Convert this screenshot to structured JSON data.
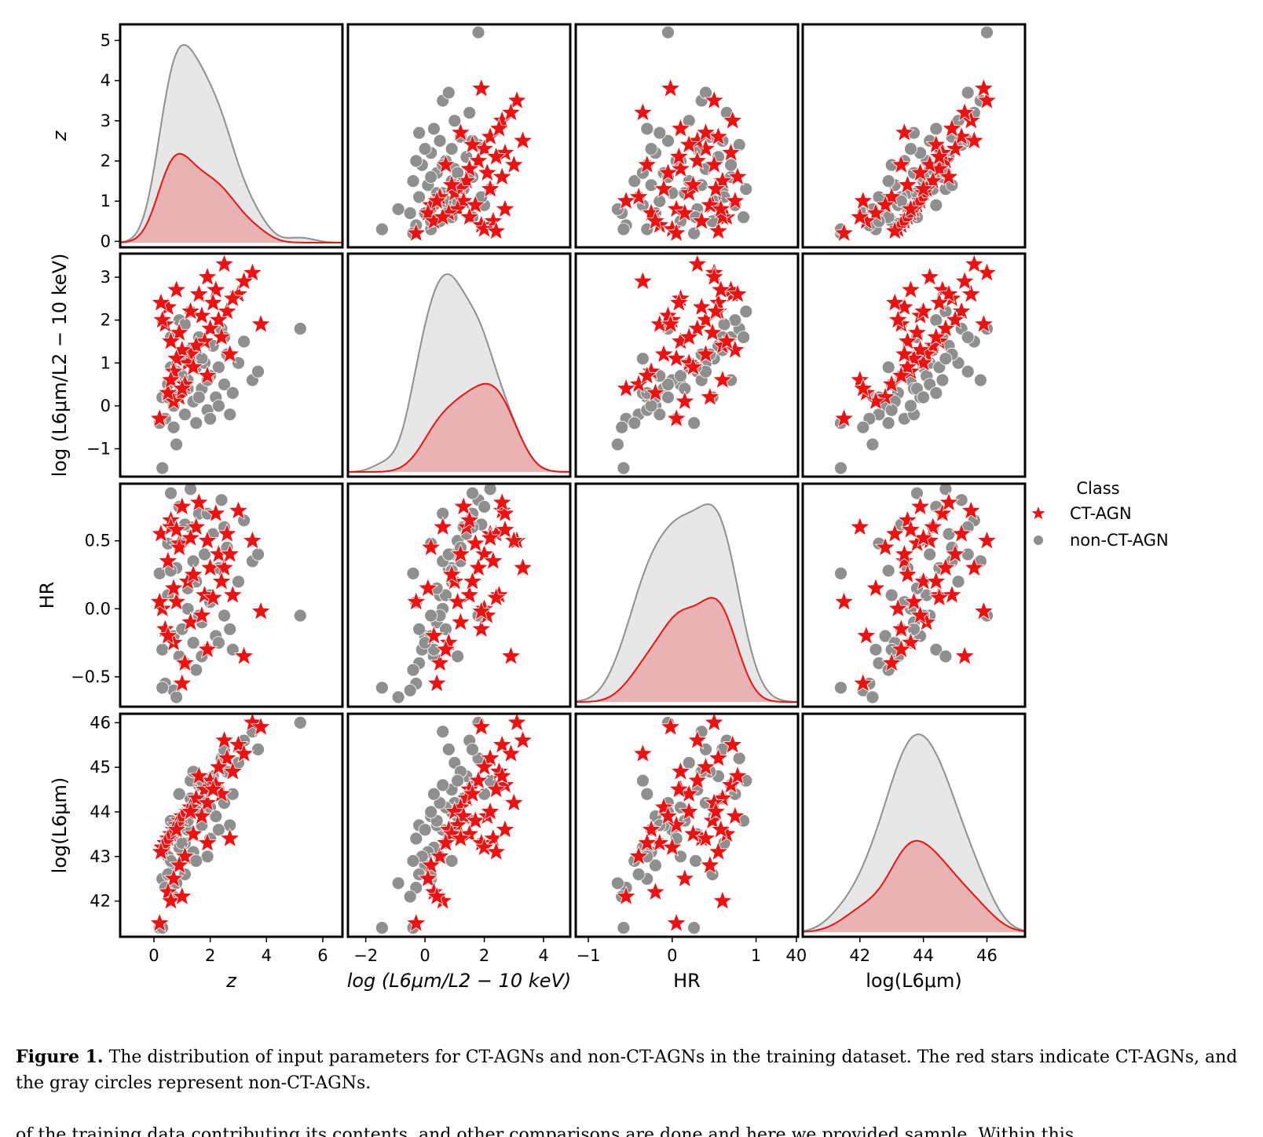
{
  "chart_data": {
    "type": "scatter",
    "variant": "pairplot",
    "variables": [
      "z",
      "log_ratio",
      "HR",
      "log_L6"
    ],
    "axis_labels": {
      "z": "z",
      "log_ratio": "log (L6μm/L2 − 10 keV)",
      "HR": "HR",
      "log_L6": "log(L6μm)"
    },
    "ranges": {
      "z": [
        -1.2,
        6.7
      ],
      "log_ratio": [
        -2.6,
        4.9
      ],
      "HR": [
        -1.15,
        1.5
      ],
      "log_L6": [
        40.2,
        47.2
      ]
    },
    "y_ranges": {
      "z": [
        -0.15,
        5.4
      ],
      "log_ratio": [
        -1.65,
        3.55
      ],
      "HR": [
        -0.72,
        0.92
      ],
      "log_L6": [
        41.2,
        46.2
      ]
    },
    "ticks": {
      "z": [
        0,
        2,
        4,
        6
      ],
      "log_ratio": [
        -2,
        0,
        2,
        4
      ],
      "HR": [
        -1,
        0,
        1
      ],
      "log_L6": [
        40,
        42,
        44,
        46
      ]
    },
    "y_ticks": {
      "z": [
        0,
        1,
        2,
        3,
        4,
        5
      ],
      "log_ratio": [
        -1,
        0,
        1,
        2,
        3
      ],
      "HR": [
        -0.5,
        0.0,
        0.5
      ],
      "log_L6": [
        42,
        43,
        44,
        45,
        46
      ]
    },
    "legend": {
      "title": "Class",
      "placement": "right",
      "entries": [
        "CT-AGN",
        "non-CT-AGN"
      ]
    },
    "colors": {
      "ct": "#ee1111",
      "ct_fill": "rgba(238,60,60,0.30)",
      "non_ct": "#8f8f8f",
      "non_ct_fill": "rgba(170,170,170,0.28)"
    },
    "series": [
      {
        "name": "CT-AGN",
        "marker": "star",
        "points": [
          [
            3.5,
            3.1,
            0.5,
            46.0
          ],
          [
            3.0,
            2.6,
            0.72,
            45.5
          ],
          [
            2.6,
            2.2,
            0.55,
            45.2
          ],
          [
            2.3,
            2.0,
            0.4,
            45.0
          ],
          [
            2.0,
            1.8,
            0.3,
            44.7
          ],
          [
            1.8,
            1.5,
            0.1,
            44.5
          ],
          [
            1.5,
            1.4,
            0.6,
            44.3
          ],
          [
            1.3,
            1.2,
            -0.1,
            44.1
          ],
          [
            1.2,
            1.0,
            0.2,
            44.0
          ],
          [
            1.0,
            1.3,
            0.75,
            43.9
          ],
          [
            0.9,
            1.7,
            0.48,
            43.8
          ],
          [
            0.8,
            1.1,
            0.05,
            43.7
          ],
          [
            0.7,
            0.8,
            -0.25,
            43.6
          ],
          [
            0.6,
            1.5,
            0.65,
            43.5
          ],
          [
            0.5,
            2.3,
            0.35,
            43.4
          ],
          [
            0.4,
            1.9,
            -0.15,
            43.3
          ],
          [
            0.3,
            2.0,
            0.0,
            43.2
          ],
          [
            0.25,
            2.4,
            0.55,
            43.1
          ],
          [
            2.8,
            2.5,
            0.1,
            44.9
          ],
          [
            3.2,
            2.9,
            -0.35,
            45.3
          ],
          [
            2.5,
            3.3,
            0.3,
            45.6
          ],
          [
            2.2,
            2.7,
            0.7,
            44.6
          ],
          [
            1.9,
            3.0,
            0.5,
            44.2
          ],
          [
            1.7,
            2.1,
            -0.05,
            43.9
          ],
          [
            1.4,
            0.9,
            0.25,
            43.5
          ],
          [
            1.1,
            0.5,
            -0.4,
            43.0
          ],
          [
            0.9,
            0.2,
            0.45,
            42.8
          ],
          [
            0.7,
            0.1,
            0.15,
            42.5
          ],
          [
            0.5,
            0.3,
            -0.2,
            42.2
          ],
          [
            0.6,
            0.6,
            0.6,
            42.0
          ],
          [
            0.2,
            -0.3,
            0.05,
            41.5
          ],
          [
            1.0,
            0.4,
            -0.55,
            42.1
          ],
          [
            1.6,
            2.6,
            0.78,
            44.8
          ],
          [
            2.4,
            1.6,
            0.2,
            44.4
          ],
          [
            3.8,
            1.9,
            -0.02,
            45.9
          ],
          [
            2.7,
            1.2,
            0.4,
            43.4
          ],
          [
            1.3,
            2.2,
            0.52,
            44.0
          ],
          [
            0.8,
            2.7,
            0.58,
            43.6
          ],
          [
            1.9,
            0.7,
            -0.3,
            43.3
          ],
          [
            2.1,
            2.4,
            0.08,
            44.5
          ]
        ]
      },
      {
        "name": "non-CT-AGN",
        "marker": "circle",
        "points": [
          [
            0.3,
            0.2,
            -0.3,
            42.5
          ],
          [
            0.5,
            0.5,
            0.1,
            43.0
          ],
          [
            0.7,
            0.0,
            -0.2,
            42.8
          ],
          [
            0.8,
            0.8,
            0.3,
            43.5
          ],
          [
            0.9,
            0.3,
            -0.35,
            43.2
          ],
          [
            1.0,
            1.1,
            0.5,
            43.9
          ],
          [
            1.1,
            -0.2,
            -0.4,
            42.6
          ],
          [
            1.2,
            0.6,
            0.0,
            43.6
          ],
          [
            1.3,
            1.3,
            0.6,
            44.3
          ],
          [
            1.4,
            0.1,
            -0.25,
            43.1
          ],
          [
            1.5,
            0.9,
            0.2,
            44.0
          ],
          [
            1.6,
            1.6,
            0.7,
            44.6
          ],
          [
            1.7,
            0.4,
            -0.1,
            43.7
          ],
          [
            1.8,
            1.0,
            0.4,
            44.2
          ],
          [
            1.9,
            -0.1,
            -0.3,
            43.0
          ],
          [
            2.0,
            0.7,
            0.1,
            44.1
          ],
          [
            2.1,
            1.4,
            0.55,
            44.8
          ],
          [
            2.2,
            0.2,
            -0.2,
            43.9
          ],
          [
            2.3,
            0.9,
            0.3,
            44.5
          ],
          [
            2.4,
            1.8,
            0.8,
            45.2
          ],
          [
            2.5,
            0.5,
            -0.05,
            44.2
          ],
          [
            2.6,
            1.2,
            0.45,
            44.9
          ],
          [
            2.8,
            0.3,
            -0.3,
            44.4
          ],
          [
            3.0,
            1.0,
            0.2,
            45.1
          ],
          [
            3.2,
            1.5,
            0.65,
            45.6
          ],
          [
            3.5,
            0.6,
            0.35,
            45.8
          ],
          [
            0.6,
            1.6,
            0.85,
            43.8
          ],
          [
            0.4,
            -0.3,
            -0.55,
            42.3
          ],
          [
            0.9,
            2.0,
            0.75,
            44.4
          ],
          [
            1.1,
            1.9,
            0.62,
            43.3
          ],
          [
            1.3,
            2.2,
            0.88,
            44.7
          ],
          [
            0.7,
            -0.5,
            -0.6,
            42.1
          ],
          [
            0.2,
            -0.4,
            0.26,
            41.4
          ],
          [
            1.5,
            -0.4,
            -0.45,
            42.9
          ],
          [
            2.0,
            -0.3,
            0.05,
            43.4
          ],
          [
            2.7,
            -0.2,
            -0.15,
            43.7
          ],
          [
            5.2,
            1.8,
            -0.05,
            46.0
          ],
          [
            3.7,
            0.8,
            0.4,
            45.4
          ],
          [
            0.8,
            -0.9,
            -0.65,
            42.4
          ],
          [
            0.3,
            -1.45,
            -0.58,
            41.4
          ],
          [
            1.2,
            0.4,
            0.15,
            43.8
          ],
          [
            1.6,
            0.2,
            -0.05,
            44.0
          ],
          [
            2.3,
            0.0,
            -0.25,
            43.6
          ],
          [
            1.9,
            0.6,
            0.7,
            44.6
          ],
          [
            0.6,
            0.9,
            0.28,
            42.9
          ],
          [
            1.0,
            0.7,
            -0.15,
            43.3
          ],
          [
            2.5,
            1.6,
            0.6,
            45.4
          ],
          [
            1.4,
            1.2,
            0.35,
            44.9
          ],
          [
            0.5,
            0.2,
            0.48,
            42.6
          ],
          [
            1.7,
            1.1,
            -0.35,
            44.7
          ]
        ]
      }
    ]
  },
  "caption": {
    "label": "Figure 1.",
    "text": " The distribution of input parameters for CT-AGNs and non-CT-AGNs in the training dataset. The red stars indicate CT-AGNs, and the gray circles represent non-CT-AGNs."
  },
  "trailing_text": "of the training data contributing its contents, and other comparisons are done and here we provided sample. Within this"
}
